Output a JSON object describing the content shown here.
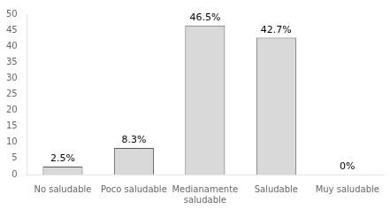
{
  "chart_data": {
    "type": "bar",
    "categories": [
      "No saludable",
      "Poco saludable",
      "Medianamente\nsaludable",
      "Saludable",
      "Muy saludable"
    ],
    "values": [
      2.5,
      8.3,
      46.5,
      42.7,
      0
    ],
    "value_labels": [
      "2.5%",
      "8.3%",
      "46.5%",
      "42.7%",
      "0%"
    ],
    "data_labels": true,
    "color": "#d9d9d9",
    "ylim": [
      0,
      50
    ],
    "yticks": [
      0,
      5,
      10,
      15,
      20,
      25,
      30,
      35,
      40,
      45,
      50
    ],
    "grid": false
  }
}
